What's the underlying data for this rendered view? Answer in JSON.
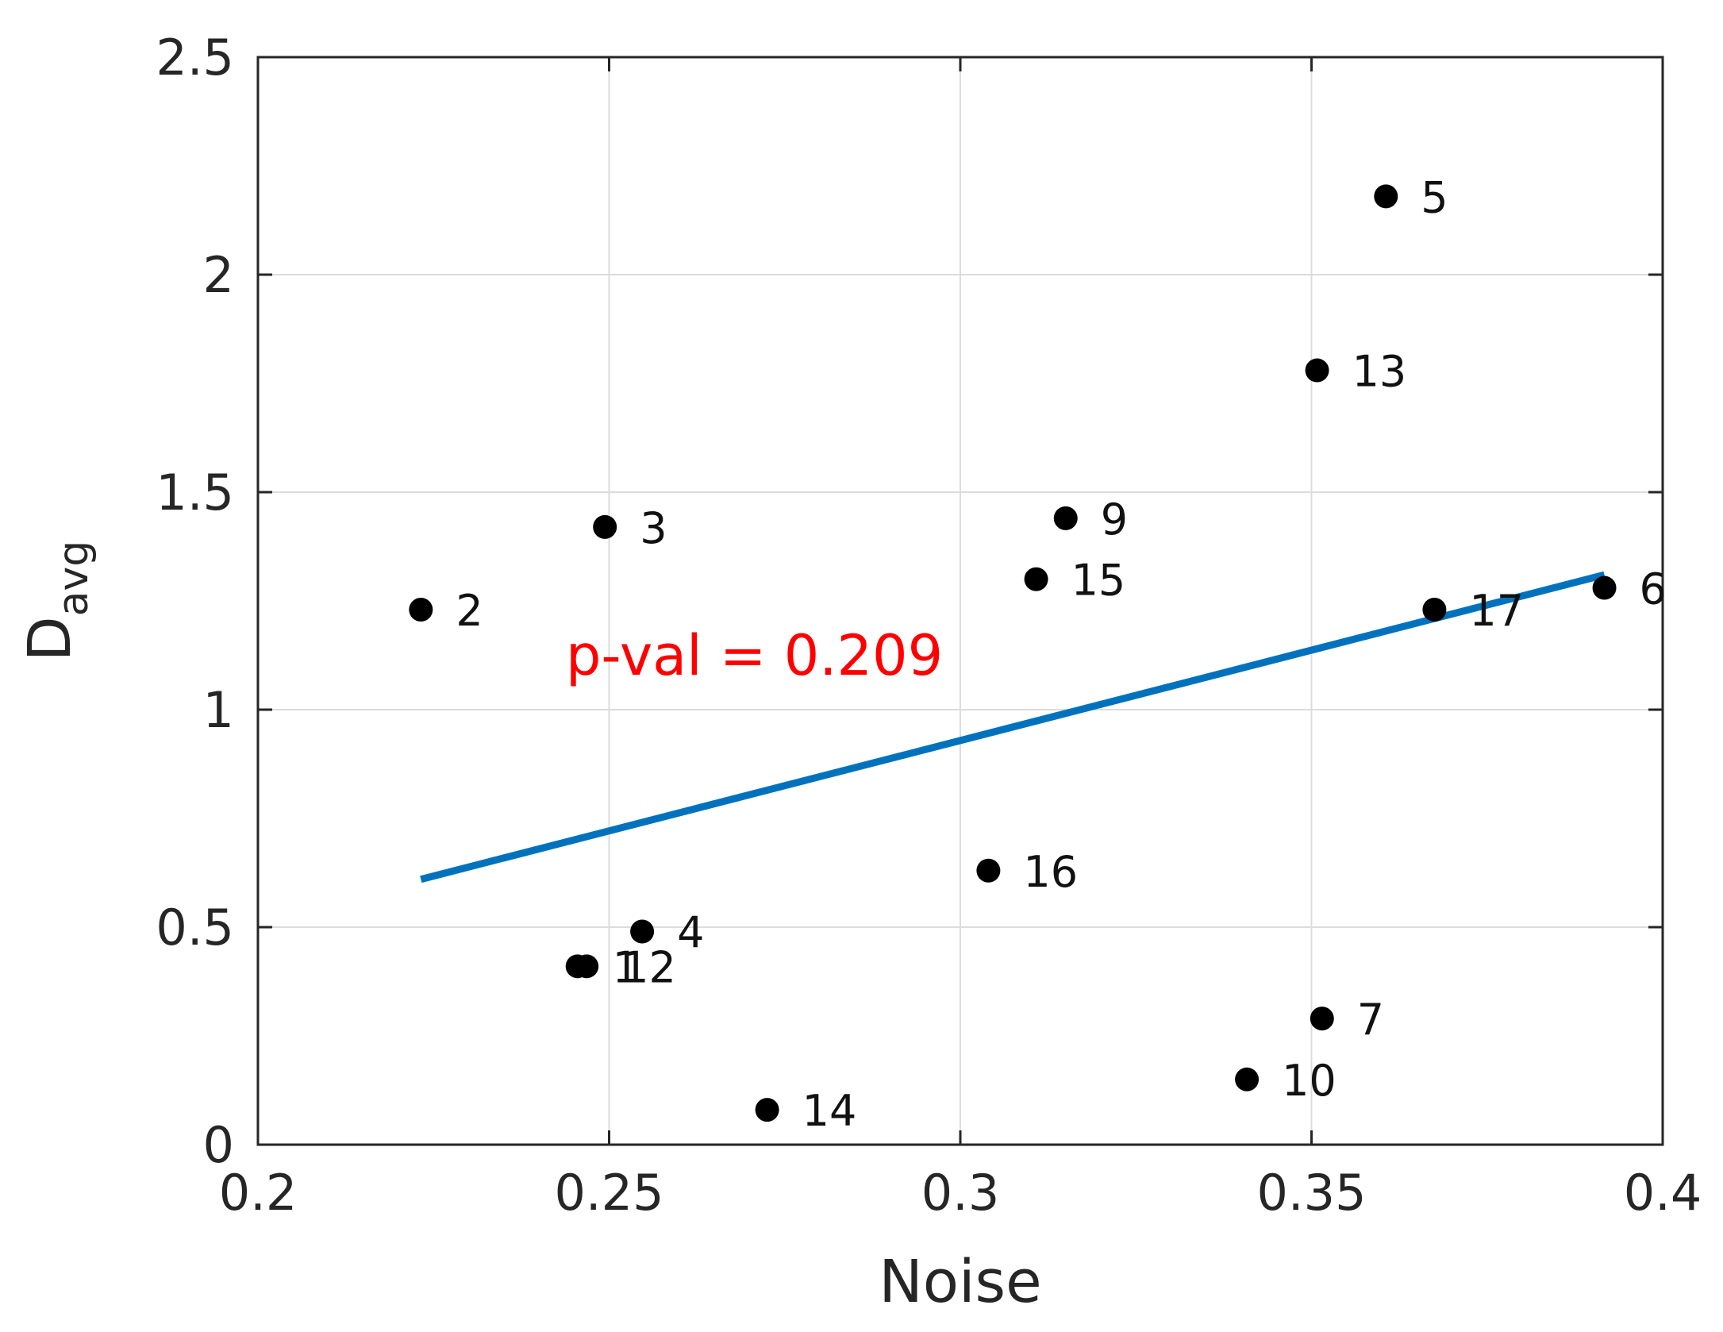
{
  "chart_data": {
    "type": "scatter",
    "title": "",
    "xlabel": "Noise",
    "ylabel": "D",
    "ylabel_subscript": "avg",
    "xlim": [
      0.2,
      0.4
    ],
    "ylim": [
      0,
      2.5
    ],
    "grid": true,
    "x_ticks": [
      0.2,
      0.25,
      0.3,
      0.35,
      0.4
    ],
    "x_tick_labels": [
      "0.2",
      "0.25",
      "0.3",
      "0.35",
      "0.4"
    ],
    "y_ticks": [
      0,
      0.5,
      1,
      1.5,
      2,
      2.5
    ],
    "y_tick_labels": [
      "0",
      "0.5",
      "1",
      "1.5",
      "2",
      "2.5"
    ],
    "points": [
      {
        "label": "1",
        "x": 0.2455,
        "y": 0.41
      },
      {
        "label": "2",
        "x": 0.2232,
        "y": 1.23
      },
      {
        "label": "3",
        "x": 0.2494,
        "y": 1.42
      },
      {
        "label": "4",
        "x": 0.2547,
        "y": 0.49
      },
      {
        "label": "5",
        "x": 0.3606,
        "y": 2.18
      },
      {
        "label": "6",
        "x": 0.3917,
        "y": 1.28
      },
      {
        "label": "7",
        "x": 0.3515,
        "y": 0.29
      },
      {
        "label": "9",
        "x": 0.315,
        "y": 1.44
      },
      {
        "label": "10",
        "x": 0.3408,
        "y": 0.15
      },
      {
        "label": "12",
        "x": 0.2468,
        "y": 0.41
      },
      {
        "label": "13",
        "x": 0.3508,
        "y": 1.78
      },
      {
        "label": "14",
        "x": 0.2725,
        "y": 0.08
      },
      {
        "label": "15",
        "x": 0.3108,
        "y": 1.3
      },
      {
        "label": "16",
        "x": 0.304,
        "y": 0.63
      },
      {
        "label": "17",
        "x": 0.3675,
        "y": 1.23
      }
    ],
    "fit_line": {
      "x": [
        0.2232,
        0.3917
      ],
      "y": [
        0.61,
        1.31
      ]
    },
    "annotation": "p-val = 0.209",
    "colors": {
      "points": "#000000",
      "fit_line": "#0072BD",
      "annotation": "#FF0000",
      "grid": "#DCDCDC",
      "axes": "#262626"
    }
  }
}
